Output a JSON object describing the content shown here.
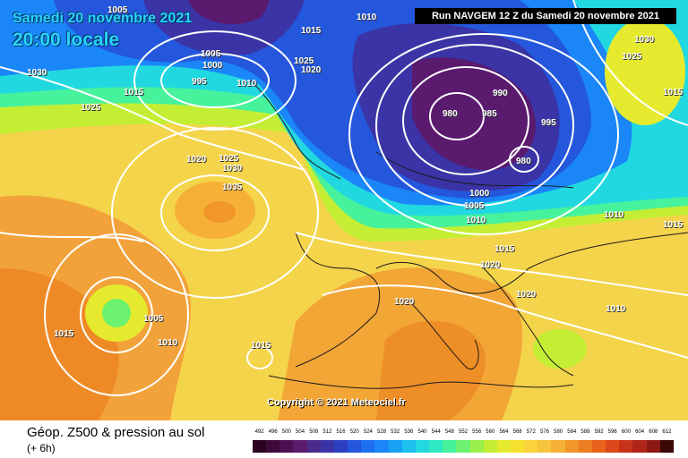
{
  "header": {
    "date": "Samedi 20 novembre 2021",
    "time": "20:00 locale",
    "run": "Run NAVGEM 12 Z du Samedi 20 novembre 2021"
  },
  "copyright": "Copyright © 2021 Meteociel.fr",
  "legend": {
    "title": "Géop. Z500 & pression au sol",
    "subtitle": "(+ 6h)",
    "scale_values": [
      "492",
      "496",
      "500",
      "504",
      "508",
      "512",
      "516",
      "520",
      "524",
      "528",
      "532",
      "536",
      "540",
      "544",
      "548",
      "552",
      "556",
      "560",
      "564",
      "568",
      "572",
      "576",
      "580",
      "584",
      "588",
      "592",
      "596",
      "600",
      "604",
      "608",
      "612"
    ],
    "scale_colors": [
      "#2a0420",
      "#3d0a3a",
      "#4c1052",
      "#5a1a6e",
      "#4a2a8a",
      "#3a34a6",
      "#2e40c2",
      "#2457dc",
      "#1e6ef0",
      "#1a86f8",
      "#18a2f4",
      "#1cc0ee",
      "#22d8e0",
      "#2ee8c4",
      "#46f29c",
      "#6cf26e",
      "#9af04a",
      "#c4ee34",
      "#e6ea2e",
      "#f6e02e",
      "#fad23a",
      "#f8c43e",
      "#f6b036",
      "#f2962a",
      "#ee7c22",
      "#e8621c",
      "#dc481a",
      "#c8341a",
      "#b0241a",
      "#8c1814",
      "#3a0606"
    ]
  },
  "isobars": [
    "1005",
    "1015",
    "1030",
    "1025",
    "1005",
    "1000",
    "995",
    "1010",
    "1015",
    "1025",
    "1020",
    "1025",
    "1030",
    "1035",
    "1020",
    "1015",
    "1005",
    "1010",
    "1015",
    "980",
    "985",
    "990",
    "995",
    "980",
    "1000",
    "1005",
    "1010",
    "1010",
    "1015",
    "1020",
    "1020",
    "1020",
    "1010",
    "1030",
    "1025",
    "1015",
    "1015",
    "1010"
  ]
}
